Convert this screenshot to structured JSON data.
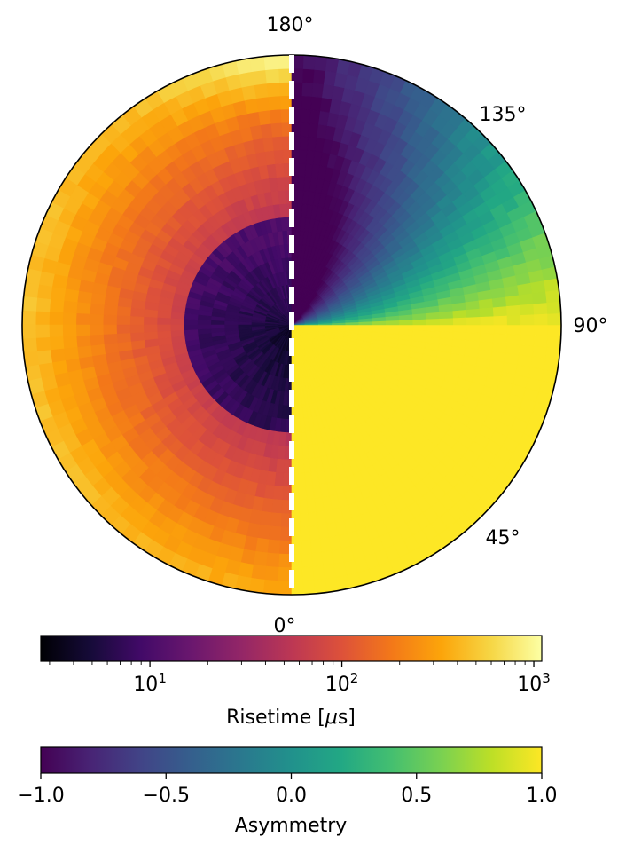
{
  "chart_data": {
    "type": "heatmap",
    "projection": "polar",
    "title": "",
    "angle_ticks": [
      {
        "value": 0,
        "label": "0°"
      },
      {
        "value": 45,
        "label": "45°"
      },
      {
        "value": 90,
        "label": "90°"
      },
      {
        "value": 135,
        "label": "135°"
      },
      {
        "value": 180,
        "label": "180°"
      }
    ],
    "angle_range_deg": [
      0,
      180
    ],
    "divider": {
      "style": "white dashed",
      "angles_deg": [
        0,
        180
      ]
    },
    "left_half": {
      "quantity": "Risetime",
      "colormap": "inferno",
      "scale": "log",
      "inner_region_risetime_us_range": [
        3,
        12
      ],
      "outer_region_risetime_us_range": [
        30,
        1000
      ],
      "trend": "risetime increases with radius; highest near 180°"
    },
    "right_half": {
      "quantity": "Asymmetry",
      "colormap": "viridis",
      "angle_from_deg": [
        0,
        90
      ],
      "asymmetry_0_to_90": 1.0,
      "angle_from_deg_upper": [
        90,
        180
      ],
      "asymmetry_trend": "decreases from 1.0 near 90° to -1.0 near 180°"
    },
    "colorbars": [
      {
        "label": "Risetime [μs]",
        "label_prefix": "Risetime [",
        "label_mu": "μ",
        "label_suffix": "s]",
        "colormap": "inferno",
        "scale": "log",
        "range": [
          2.7,
          1100
        ],
        "ticks": [
          {
            "value": 10,
            "base": "10",
            "exp": "1"
          },
          {
            "value": 100,
            "base": "10",
            "exp": "2"
          },
          {
            "value": 1000,
            "base": "10",
            "exp": "3"
          }
        ]
      },
      {
        "label": "Asymmetry",
        "colormap": "viridis",
        "scale": "linear",
        "range": [
          -1.0,
          1.0
        ],
        "ticks": [
          {
            "value": -1.0,
            "label": "−1.0"
          },
          {
            "value": -0.5,
            "label": "−0.5"
          },
          {
            "value": 0.0,
            "label": "0.0"
          },
          {
            "value": 0.5,
            "label": "0.5"
          },
          {
            "value": 1.0,
            "label": "1.0"
          }
        ]
      }
    ]
  }
}
